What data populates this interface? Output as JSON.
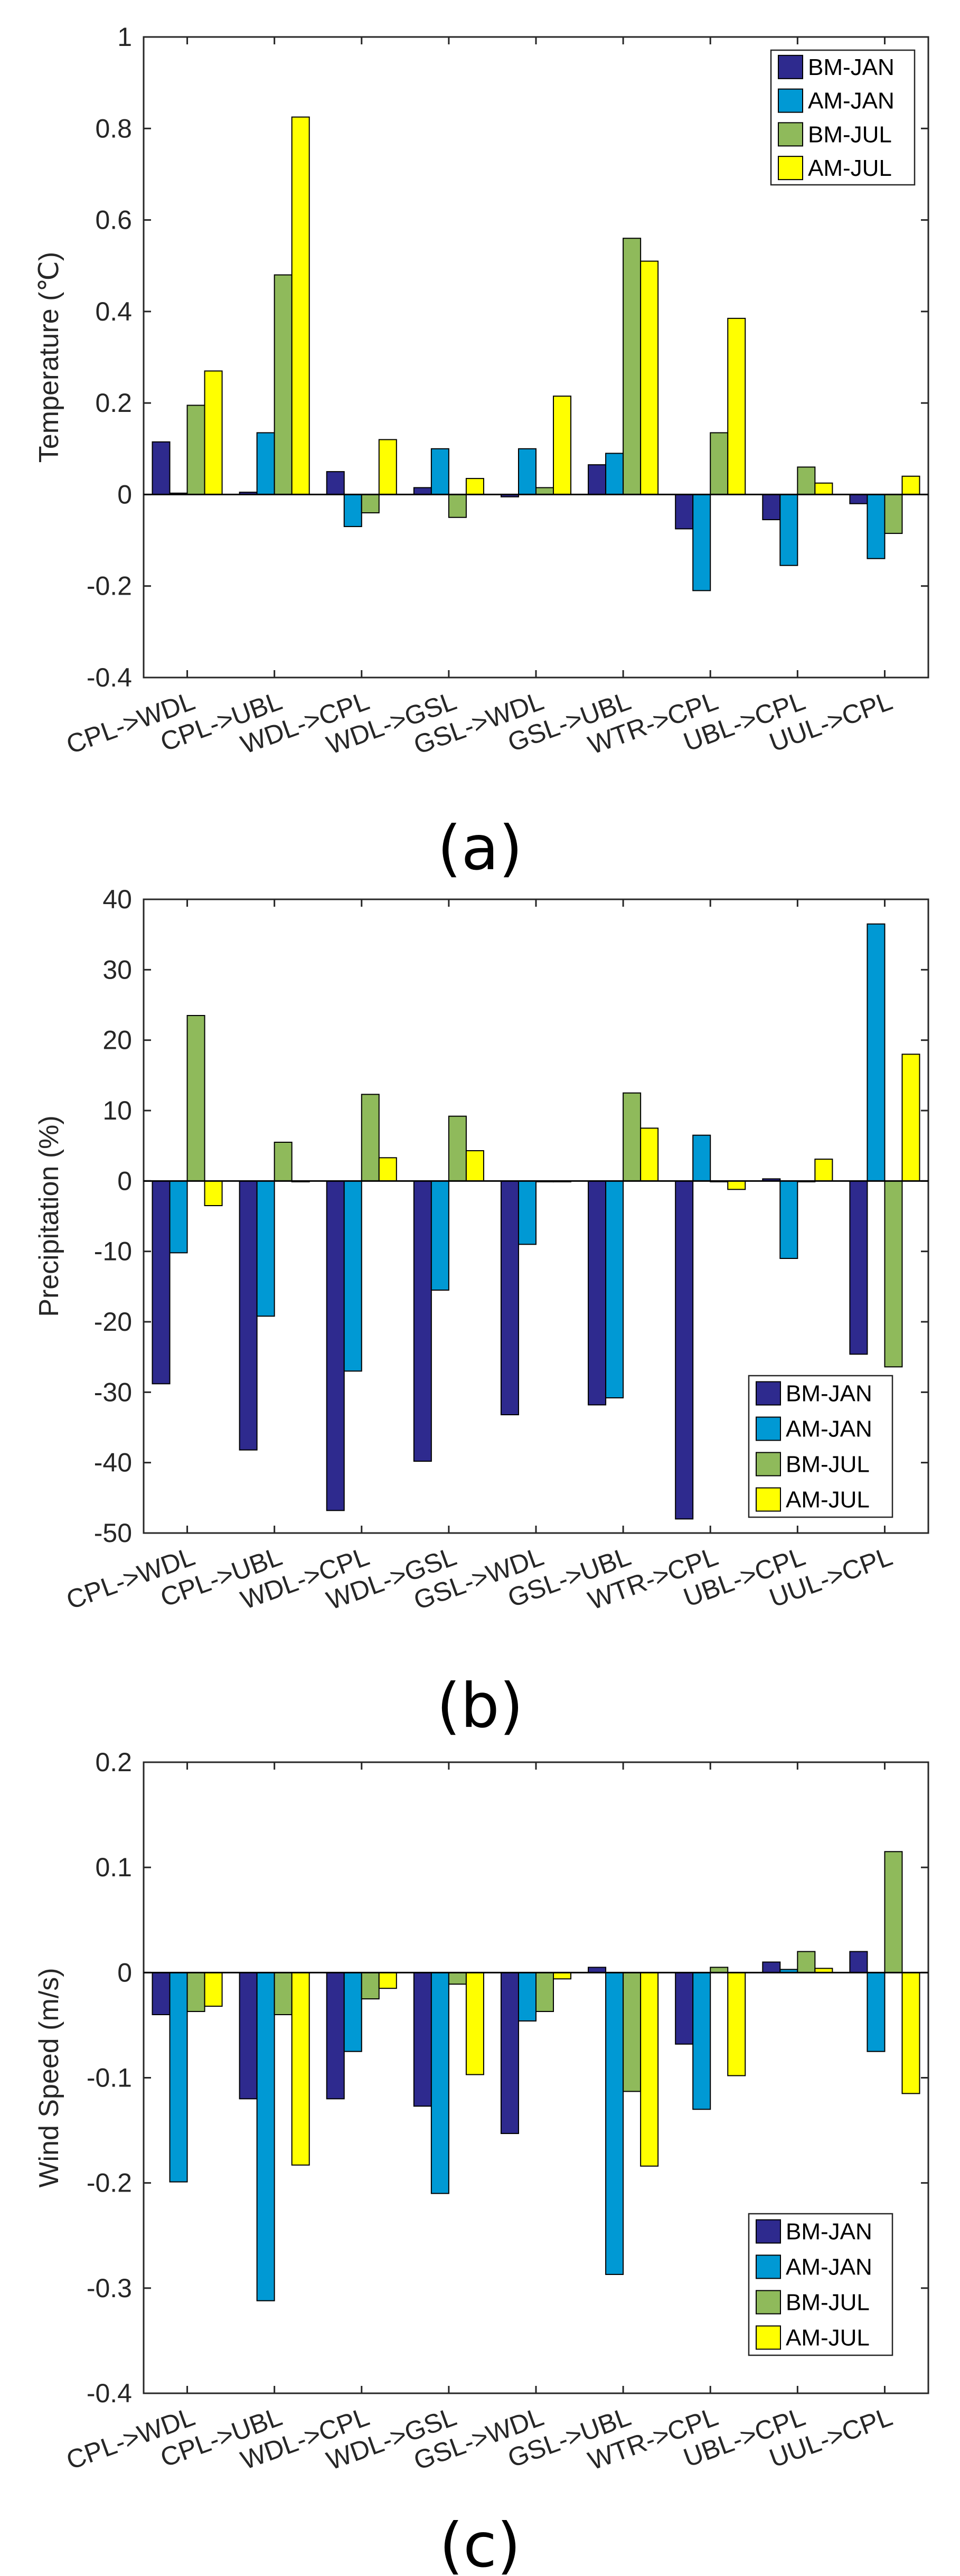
{
  "chart_data": [
    {
      "type": "bar",
      "panel_label": "(a)",
      "ylabel": "Temperature (℃)",
      "ylim": [
        -0.4,
        1
      ],
      "yticks": [
        -0.4,
        -0.2,
        0,
        0.2,
        0.4,
        0.6,
        0.8,
        1
      ],
      "ytick_labels": [
        "-0.4",
        "-0.2",
        "0",
        "0.2",
        "0.4",
        "0.6",
        "0.8",
        "1"
      ],
      "legend_position": "top-right",
      "categories": [
        "CPL->WDL",
        "CPL->UBL",
        "WDL->CPL",
        "WDL->GSL",
        "GSL->WDL",
        "GSL->UBL",
        "WTR->CPL",
        "UBL->CPL",
        "UUL->CPL"
      ],
      "series": [
        {
          "name": "BM-JAN",
          "color": "#2e2a8e",
          "values": [
            0.115,
            0.005,
            0.05,
            0.015,
            -0.005,
            0.065,
            -0.075,
            -0.055,
            -0.02
          ]
        },
        {
          "name": "AM-JAN",
          "color": "#0099d4",
          "values": [
            0.003,
            0.135,
            -0.07,
            0.1,
            0.1,
            0.09,
            -0.21,
            -0.155,
            -0.14
          ]
        },
        {
          "name": "BM-JUL",
          "color": "#8fba5b",
          "values": [
            0.195,
            0.48,
            -0.04,
            -0.05,
            0.015,
            0.56,
            0.135,
            0.06,
            -0.085
          ]
        },
        {
          "name": "AM-JUL",
          "color": "#ffff00",
          "values": [
            0.27,
            0.825,
            0.12,
            0.035,
            0.215,
            0.51,
            0.385,
            0.025,
            0.04
          ]
        }
      ]
    },
    {
      "type": "bar",
      "panel_label": "(b)",
      "ylabel": "Precipitation (%)",
      "ylim": [
        -50,
        40
      ],
      "yticks": [
        -50,
        -40,
        -30,
        -20,
        -10,
        0,
        10,
        20,
        30,
        40
      ],
      "ytick_labels": [
        "-50",
        "-40",
        "-30",
        "-20",
        "-10",
        "0",
        "10",
        "20",
        "30",
        "40"
      ],
      "legend_position": "bottom-right",
      "categories": [
        "CPL->WDL",
        "CPL->UBL",
        "WDL->CPL",
        "WDL->GSL",
        "GSL->WDL",
        "GSL->UBL",
        "WTR->CPL",
        "UBL->CPL",
        "UUL->CPL"
      ],
      "series": [
        {
          "name": "BM-JAN",
          "color": "#2e2a8e",
          "values": [
            -28.8,
            -38.2,
            -46.8,
            -39.8,
            -33.2,
            -31.8,
            -48,
            0.3,
            -24.6
          ]
        },
        {
          "name": "AM-JAN",
          "color": "#0099d4",
          "values": [
            -10.2,
            -19.2,
            -27,
            -15.5,
            -9,
            -30.8,
            6.5,
            -11,
            36.5
          ]
        },
        {
          "name": "BM-JUL",
          "color": "#8fba5b",
          "values": [
            23.5,
            5.5,
            12.3,
            9.2,
            0,
            12.5,
            0,
            0,
            -26.4
          ]
        },
        {
          "name": "AM-JUL",
          "color": "#ffff00",
          "values": [
            -3.5,
            0,
            3.3,
            4.3,
            0,
            7.5,
            -1.2,
            3.1,
            18
          ]
        }
      ]
    },
    {
      "type": "bar",
      "panel_label": "(c)",
      "ylabel": "Wind Speed (m/s)",
      "ylim": [
        -0.4,
        0.2
      ],
      "yticks": [
        -0.4,
        -0.3,
        -0.2,
        -0.1,
        0,
        0.1,
        0.2
      ],
      "ytick_labels": [
        "-0.4",
        "-0.3",
        "-0.2",
        "-0.1",
        "0",
        "0.1",
        "0.2"
      ],
      "legend_position": "bottom-right",
      "categories": [
        "CPL->WDL",
        "CPL->UBL",
        "WDL->CPL",
        "WDL->GSL",
        "GSL->WDL",
        "GSL->UBL",
        "WTR->CPL",
        "UBL->CPL",
        "UUL->CPL"
      ],
      "series": [
        {
          "name": "BM-JAN",
          "color": "#2e2a8e",
          "values": [
            -0.04,
            -0.12,
            -0.12,
            -0.127,
            -0.153,
            0.005,
            -0.068,
            0.01,
            0.02
          ]
        },
        {
          "name": "AM-JAN",
          "color": "#0099d4",
          "values": [
            -0.199,
            -0.312,
            -0.075,
            -0.21,
            -0.046,
            -0.287,
            -0.13,
            0.003,
            -0.075
          ]
        },
        {
          "name": "BM-JUL",
          "color": "#8fba5b",
          "values": [
            -0.037,
            -0.04,
            -0.025,
            -0.011,
            -0.037,
            -0.113,
            0.005,
            0.02,
            0.115
          ]
        },
        {
          "name": "AM-JUL",
          "color": "#ffff00",
          "values": [
            -0.032,
            -0.183,
            -0.015,
            -0.097,
            -0.006,
            -0.184,
            -0.098,
            0.004,
            -0.115
          ]
        }
      ]
    }
  ]
}
